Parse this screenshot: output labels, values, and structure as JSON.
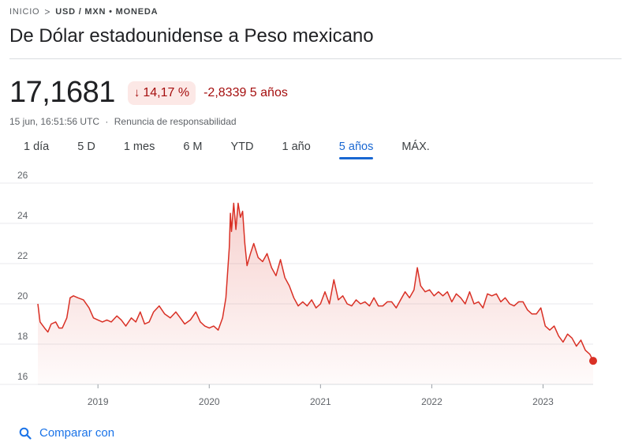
{
  "breadcrumb": {
    "home": "INICIO",
    "separator": ">",
    "current": "USD / MXN • MONEDA"
  },
  "title": "De Dólar estadounidense a Peso mexicano",
  "quote": {
    "price": "17,1681",
    "arrow": "↓",
    "change_pct": "14,17 %",
    "change_abs": "-2,8339 5 años",
    "timestamp": "15 jun, 16:51:56 UTC",
    "dot": "·",
    "disclaimer": "Renuncia de responsabilidad"
  },
  "tabs": [
    {
      "label": "1 día"
    },
    {
      "label": "5 D"
    },
    {
      "label": "1 mes"
    },
    {
      "label": "6 M"
    },
    {
      "label": "YTD"
    },
    {
      "label": "1 año"
    },
    {
      "label": "5 años"
    },
    {
      "label": "MÁX."
    }
  ],
  "active_tab": "5 años",
  "compare": {
    "label": "Comparar con",
    "icon": "search-icon"
  },
  "colors": {
    "line": "#d93025",
    "fill": "#fce8e6",
    "accent": "#1967d2",
    "negative": "#a50e0e",
    "gridline": "#e8eaed"
  },
  "chart_data": {
    "type": "area",
    "ylim": [
      16,
      26
    ],
    "yticks": [
      16,
      18,
      20,
      22,
      24,
      26
    ],
    "ytick_labels": [
      "16",
      "18",
      "20",
      "22",
      "24",
      "26"
    ],
    "xlim": [
      2018.46,
      2023.45
    ],
    "xticks": [
      2019,
      2020,
      2021,
      2022,
      2023
    ],
    "xtick_labels": [
      "2019",
      "2020",
      "2021",
      "2022",
      "2023"
    ],
    "grid": true,
    "series": [
      {
        "x": [
          2018.46,
          2018.48,
          2018.52,
          2018.55,
          2018.58,
          2018.62,
          2018.65,
          2018.68,
          2018.72,
          2018.75,
          2018.78,
          2018.82,
          2018.87,
          2018.92,
          2018.96,
          2019.0,
          2019.04,
          2019.08,
          2019.12,
          2019.17,
          2019.21,
          2019.25,
          2019.3,
          2019.34,
          2019.38,
          2019.42,
          2019.46,
          2019.5,
          2019.55,
          2019.6,
          2019.65,
          2019.7,
          2019.74,
          2019.78,
          2019.83,
          2019.88,
          2019.92,
          2019.96,
          2020.0,
          2020.04,
          2020.08,
          2020.12,
          2020.15,
          2020.18,
          2020.19,
          2020.2,
          2020.22,
          2020.24,
          2020.26,
          2020.28,
          2020.3,
          2020.32,
          2020.34,
          2020.37,
          2020.4,
          2020.44,
          2020.48,
          2020.52,
          2020.56,
          2020.6,
          2020.64,
          2020.68,
          2020.72,
          2020.76,
          2020.8,
          2020.84,
          2020.88,
          2020.92,
          2020.96,
          2021.0,
          2021.04,
          2021.08,
          2021.12,
          2021.16,
          2021.2,
          2021.24,
          2021.28,
          2021.32,
          2021.36,
          2021.4,
          2021.44,
          2021.48,
          2021.52,
          2021.56,
          2021.6,
          2021.64,
          2021.68,
          2021.72,
          2021.76,
          2021.8,
          2021.84,
          2021.87,
          2021.9,
          2021.94,
          2021.98,
          2022.02,
          2022.06,
          2022.1,
          2022.14,
          2022.18,
          2022.22,
          2022.26,
          2022.3,
          2022.34,
          2022.38,
          2022.42,
          2022.46,
          2022.5,
          2022.54,
          2022.58,
          2022.62,
          2022.66,
          2022.7,
          2022.74,
          2022.78,
          2022.82,
          2022.86,
          2022.9,
          2022.94,
          2022.98,
          2023.02,
          2023.06,
          2023.1,
          2023.14,
          2023.18,
          2023.22,
          2023.26,
          2023.3,
          2023.34,
          2023.38,
          2023.42,
          2023.45
        ],
        "y": [
          20.0,
          19.1,
          18.8,
          18.6,
          19.0,
          19.1,
          18.8,
          18.8,
          19.3,
          20.3,
          20.4,
          20.3,
          20.2,
          19.8,
          19.3,
          19.2,
          19.1,
          19.2,
          19.1,
          19.4,
          19.2,
          18.9,
          19.3,
          19.1,
          19.6,
          19.0,
          19.1,
          19.6,
          19.9,
          19.5,
          19.3,
          19.6,
          19.3,
          19.0,
          19.2,
          19.6,
          19.1,
          18.9,
          18.8,
          18.9,
          18.7,
          19.3,
          20.3,
          22.8,
          24.5,
          23.6,
          25.0,
          23.7,
          25.0,
          24.3,
          24.6,
          23.0,
          21.9,
          22.5,
          23.0,
          22.3,
          22.1,
          22.5,
          21.8,
          21.4,
          22.2,
          21.3,
          20.9,
          20.3,
          19.9,
          20.1,
          19.9,
          20.2,
          19.8,
          20.0,
          20.6,
          20.0,
          21.2,
          20.2,
          20.4,
          20.0,
          19.9,
          20.2,
          20.0,
          20.1,
          19.9,
          20.3,
          19.9,
          19.9,
          20.1,
          20.1,
          19.8,
          20.2,
          20.6,
          20.3,
          20.7,
          21.8,
          20.9,
          20.6,
          20.7,
          20.4,
          20.6,
          20.4,
          20.6,
          20.1,
          20.5,
          20.3,
          20.0,
          20.6,
          20.0,
          20.1,
          19.8,
          20.5,
          20.4,
          20.5,
          20.1,
          20.3,
          20.0,
          19.9,
          20.1,
          20.1,
          19.7,
          19.5,
          19.5,
          19.8,
          18.9,
          18.7,
          18.9,
          18.4,
          18.1,
          18.5,
          18.3,
          17.9,
          18.2,
          17.7,
          17.5,
          17.17
        ]
      }
    ]
  }
}
